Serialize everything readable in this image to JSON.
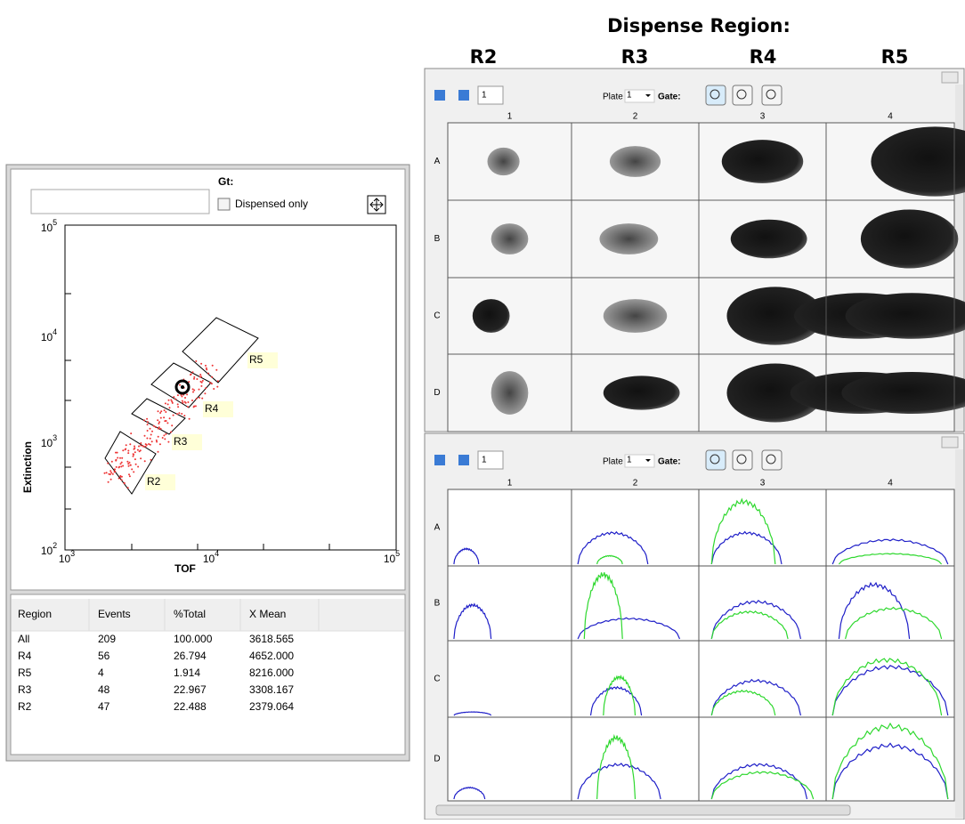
{
  "header": {
    "title": "Dispense Region:",
    "regions": [
      "R2",
      "R3",
      "R4",
      "R5"
    ]
  },
  "left_panel": {
    "gate_label": "Gt:",
    "checkbox_label": "Dispensed only",
    "y_axis_label": "Extinction",
    "x_axis_label": "TOF",
    "y_ticks": [
      {
        "base": "10",
        "exp": "5"
      },
      {
        "base": "10",
        "exp": "4"
      },
      {
        "base": "10",
        "exp": "3"
      },
      {
        "base": "10",
        "exp": "2"
      }
    ],
    "x_ticks": [
      {
        "base": "10",
        "exp": "3"
      },
      {
        "base": "10",
        "exp": "4"
      },
      {
        "base": "10",
        "exp": "5"
      }
    ],
    "region_labels": [
      "R5",
      "R4",
      "R3",
      "R2"
    ],
    "table": {
      "columns": [
        "Region",
        "Events",
        "%Total",
        "X Mean"
      ],
      "rows": [
        [
          "All",
          "209",
          "100.000",
          "3618.565"
        ],
        [
          "R4",
          "56",
          "26.794",
          "4652.000"
        ],
        [
          "R5",
          "4",
          "1.914",
          "8216.000"
        ],
        [
          "R3",
          "48",
          "22.967",
          "3308.167"
        ],
        [
          "R2",
          "47",
          "22.488",
          "2379.064"
        ]
      ]
    }
  },
  "windows": [
    {
      "page": "1",
      "plate_label": "Plate",
      "plate": "1",
      "gate_label": "Gate:",
      "columns": [
        "1",
        "2",
        "3",
        "4"
      ],
      "rows": [
        "A",
        "B",
        "C",
        "D"
      ]
    },
    {
      "page": "1",
      "plate_label": "Plate",
      "plate": "1",
      "gate_label": "Gate:",
      "columns": [
        "1",
        "2",
        "3",
        "4"
      ],
      "rows": [
        "A",
        "B",
        "C",
        "D"
      ]
    }
  ]
}
